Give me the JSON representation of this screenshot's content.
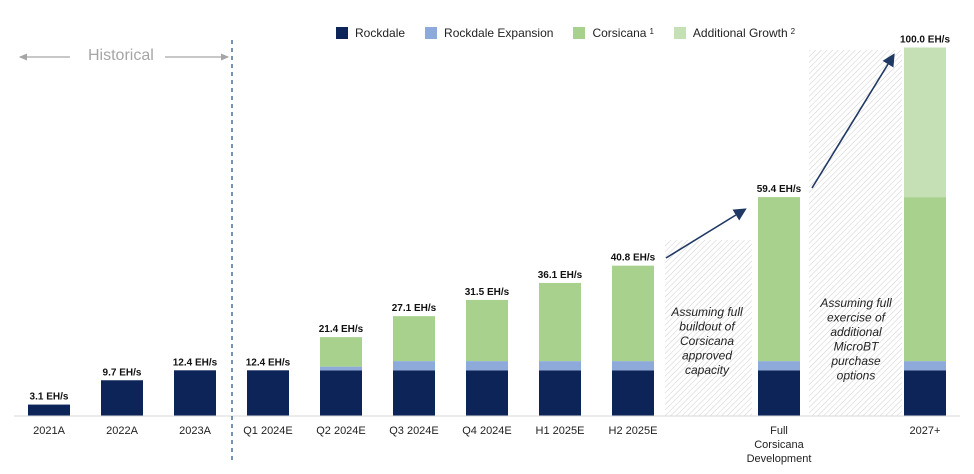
{
  "legend": {
    "items": [
      {
        "label": "Rockdale",
        "color": "#0d2458",
        "sup": ""
      },
      {
        "label": "Rockdale Expansion",
        "color": "#8eaadb",
        "sup": ""
      },
      {
        "label": "Corsicana",
        "color": "#a9d18e",
        "sup": "1"
      },
      {
        "label": "Additional Growth",
        "color": "#c5e0b4",
        "sup": "2"
      }
    ]
  },
  "historical_label": "Historical",
  "chart_data": {
    "type": "bar",
    "stacked": true,
    "unit": "EH/s",
    "categories": [
      "2021A",
      "2022A",
      "2023A",
      "Q1 2024E",
      "Q2 2024E",
      "Q3 2024E",
      "Q4 2024E",
      "H1 2025E",
      "H2 2025E",
      "Full Corsicana Development",
      "2027+"
    ],
    "totals_labels": [
      "3.1 EH/s",
      "9.7 EH/s",
      "12.4 EH/s",
      "12.4 EH/s",
      "21.4 EH/s",
      "27.1 EH/s",
      "31.5 EH/s",
      "36.1 EH/s",
      "40.8 EH/s",
      "59.4 EH/s",
      "100.0 EH/s"
    ],
    "series": [
      {
        "name": "Rockdale",
        "color": "#0d2458",
        "values": [
          3.1,
          9.7,
          12.4,
          12.4,
          12.4,
          12.4,
          12.4,
          12.4,
          12.4,
          12.4,
          12.4
        ]
      },
      {
        "name": "Rockdale Expansion",
        "color": "#8eaadb",
        "values": [
          0,
          0,
          0,
          0,
          1.0,
          2.5,
          2.5,
          2.5,
          2.5,
          2.5,
          2.5
        ]
      },
      {
        "name": "Corsicana",
        "color": "#a9d18e",
        "values": [
          0,
          0,
          0,
          0,
          8.0,
          12.2,
          16.6,
          21.2,
          25.9,
          44.5,
          44.5
        ]
      },
      {
        "name": "Additional Growth",
        "color": "#c5e0b4",
        "values": [
          0,
          0,
          0,
          0,
          0,
          0,
          0,
          0,
          0,
          0,
          40.6
        ]
      }
    ],
    "ylim": [
      0,
      100
    ],
    "annotations": [
      "Assuming full buildout of Corsicana approved capacity",
      "Assuming full exercise of additional MicroBT purchase options"
    ]
  }
}
